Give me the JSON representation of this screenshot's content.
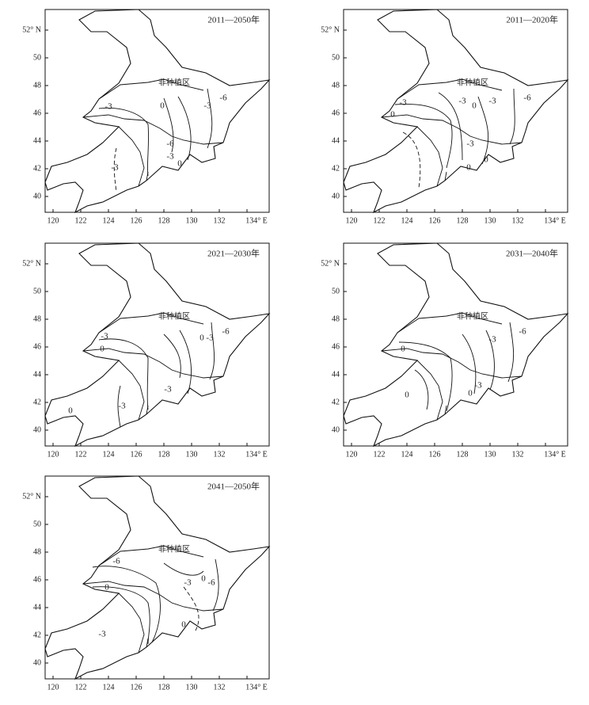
{
  "axes": {
    "x_ticks": [
      "120",
      "122",
      "124",
      "126",
      "128",
      "130",
      "132",
      "134° E"
    ],
    "y_ticks": [
      "40",
      "42",
      "44",
      "46",
      "48",
      "50",
      "52° N"
    ]
  },
  "panels": [
    {
      "title": "2011—2050年",
      "region_label": "非种植区",
      "contour_labels": [
        "-3",
        "0",
        "-3",
        "-6",
        "-6",
        "-3",
        "0",
        "-3"
      ]
    },
    {
      "title": "2011—2020年",
      "region_label": "非种植区",
      "contour_labels": [
        "-3",
        "0",
        "-3",
        "0",
        "-3",
        "-6",
        "-3",
        "0",
        "0"
      ]
    },
    {
      "title": "2021—2030年",
      "region_label": "非种植区",
      "contour_labels": [
        "-3",
        "0",
        "0",
        "-3",
        "-6",
        "-3",
        "0",
        "-3"
      ]
    },
    {
      "title": "2031—2040年",
      "region_label": "非种植区",
      "contour_labels": [
        "0",
        "-3",
        "-6",
        "-3",
        "0",
        "0"
      ]
    },
    {
      "title": "2041—2050年",
      "region_label": "非种植区",
      "contour_labels": [
        "-6",
        "0",
        "-3",
        "0",
        "-6",
        "-3",
        "0"
      ]
    }
  ]
}
